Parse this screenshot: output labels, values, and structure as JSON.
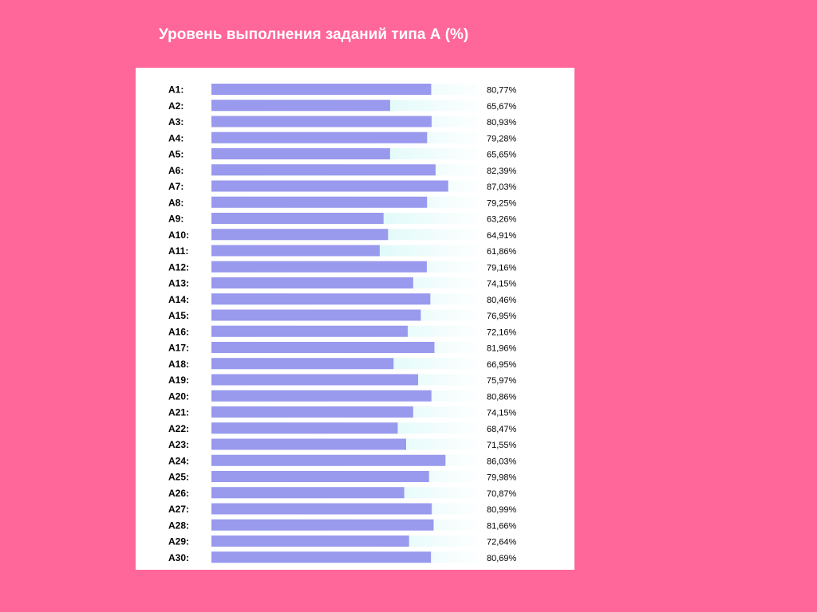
{
  "colors": {
    "background": "#ff6699",
    "panel": "#ffffff",
    "bar_fill": "#9999ee",
    "track_start": "#aef2ef",
    "track_end": "#ffffff"
  },
  "chart_data": {
    "type": "bar",
    "orientation": "horizontal",
    "title": "Уровень выполнения заданий типа А (%)",
    "categories": [
      "А1:",
      "А2:",
      "А3:",
      "А4:",
      "А5:",
      "А6:",
      "А7:",
      "А8:",
      "А9:",
      "А10:",
      "А11:",
      "А12:",
      "А13:",
      "А14:",
      "А15:",
      "А16:",
      "А17:",
      "А18:",
      "А19:",
      "А20:",
      "А21:",
      "А22:",
      "А23:",
      "А24:",
      "А25:",
      "А26:",
      "А27:",
      "А28:",
      "А29:",
      "А30:"
    ],
    "values": [
      80.77,
      65.67,
      80.93,
      79.28,
      65.65,
      82.39,
      87.03,
      79.25,
      63.26,
      64.91,
      61.86,
      79.16,
      74.15,
      80.46,
      76.95,
      72.16,
      81.96,
      66.95,
      75.97,
      80.86,
      74.15,
      68.47,
      71.55,
      86.03,
      79.98,
      70.87,
      80.99,
      81.66,
      72.64,
      80.69
    ],
    "value_labels": [
      "80,77%",
      "65,67%",
      "80,93%",
      "79,28%",
      "65,65%",
      "82,39%",
      "87,03%",
      "79,25%",
      "63,26%",
      "64,91%",
      "61,86%",
      "79,16%",
      "74,15%",
      "80,46%",
      "76,95%",
      "72,16%",
      "81,96%",
      "66,95%",
      "75,97%",
      "80,86%",
      "74,15%",
      "68,47%",
      "71,55%",
      "86,03%",
      "79,98%",
      "70,87%",
      "80,99%",
      "81,66%",
      "72,64%",
      "80,69%"
    ],
    "xlim": [
      0,
      100
    ],
    "grid": false,
    "legend": "none"
  }
}
